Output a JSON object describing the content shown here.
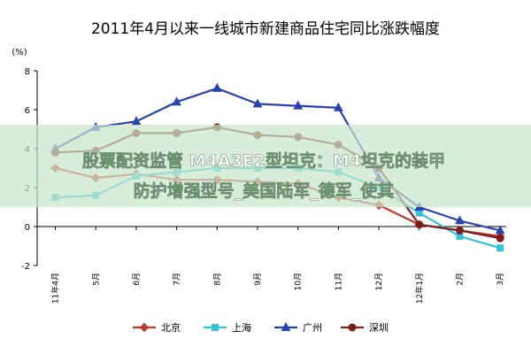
{
  "chart_data": {
    "type": "line",
    "title": "2011年4月以来一线城市新建商品住宅同比涨跌幅度",
    "ylabel": "(%)",
    "xlabel": "",
    "ylim": [
      -2,
      8
    ],
    "yticks": [
      -2,
      0,
      2,
      4,
      6,
      8
    ],
    "categories": [
      "11年4月",
      "5月",
      "6月",
      "7月",
      "8月",
      "9月",
      "10月",
      "11月",
      "12月",
      "12年1月",
      "2月",
      "3月"
    ],
    "x_tick_labels": [
      "11年4月",
      "5月",
      "6月",
      "7月",
      "8月",
      "9月",
      "10月",
      "11月",
      "12月",
      "12年1月",
      "2月",
      "3月"
    ],
    "grid": false,
    "legend_position": "bottom",
    "series": [
      {
        "name": "北京",
        "color": "#c0392b",
        "marker": "diamond",
        "values": [
          3.0,
          2.5,
          2.7,
          2.4,
          2.4,
          2.3,
          2.2,
          1.5,
          1.1,
          0.1,
          -0.2,
          -0.5
        ]
      },
      {
        "name": "上海",
        "color": "#33c3d6",
        "marker": "square",
        "values": [
          1.5,
          1.6,
          2.6,
          2.8,
          3.0,
          3.0,
          3.0,
          2.8,
          2.0,
          0.7,
          -0.5,
          -1.1
        ]
      },
      {
        "name": "广州",
        "color": "#2743b0",
        "marker": "triangle",
        "values": [
          4.0,
          5.1,
          5.4,
          6.4,
          7.1,
          6.3,
          6.2,
          6.1,
          2.5,
          1.0,
          0.3,
          -0.2
        ]
      },
      {
        "name": "深圳",
        "color": "#7a1f1f",
        "marker": "circle",
        "values": [
          3.8,
          3.9,
          4.8,
          4.8,
          5.1,
          4.7,
          4.6,
          4.2,
          3.0,
          0.1,
          -0.2,
          -0.6
        ]
      }
    ]
  },
  "overlay": {
    "line1": "股票配资监管 M4A3E2型坦克：M4坦克的装甲",
    "line2": "防护增强型号_美国陆军_德军_使其"
  }
}
